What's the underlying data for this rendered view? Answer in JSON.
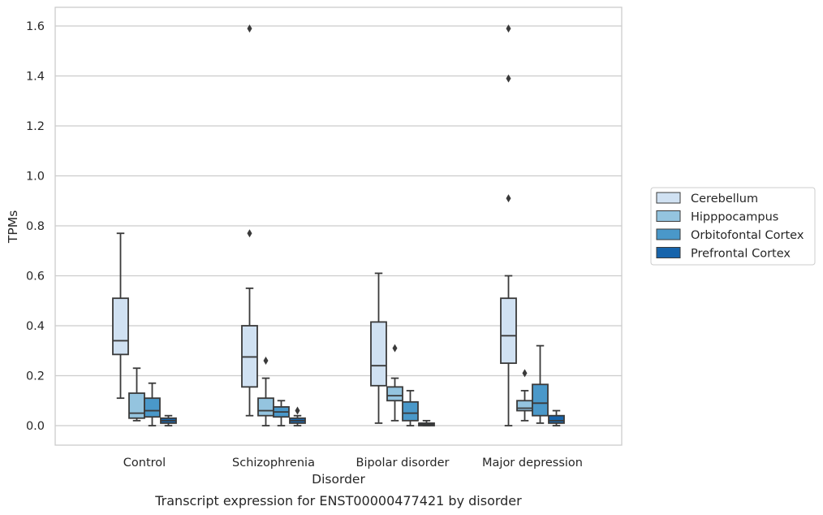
{
  "caption": "Transcript expression for ENST00000477421 by disorder",
  "chart_data": {
    "type": "box",
    "xlabel": "Disorder",
    "ylabel": "TPMs",
    "ylim": [
      -0.08,
      1.67
    ],
    "yticks": [
      0.0,
      0.2,
      0.4,
      0.6,
      0.8,
      1.0,
      1.2,
      1.4,
      1.6
    ],
    "ytick_labels": [
      "0.0",
      "0.2",
      "0.4",
      "0.6",
      "0.8",
      "1.0",
      "1.2",
      "1.4",
      "1.6"
    ],
    "grid": "horizontal",
    "legend_position": "center-right",
    "categories": [
      "Control",
      "Schizophrenia",
      "Bipolar disorder",
      "Major depression"
    ],
    "series": [
      {
        "name": "Cerebellum",
        "color": "#d0e1f2",
        "boxes": [
          {
            "whislo": 0.11,
            "q1": 0.285,
            "med": 0.34,
            "q3": 0.51,
            "whishi": 0.77,
            "fliers": []
          },
          {
            "whislo": 0.04,
            "q1": 0.155,
            "med": 0.275,
            "q3": 0.4,
            "whishi": 0.55,
            "fliers": [
              0.77,
              1.59
            ]
          },
          {
            "whislo": 0.01,
            "q1": 0.16,
            "med": 0.24,
            "q3": 0.415,
            "whishi": 0.61,
            "fliers": []
          },
          {
            "whislo": 0.0,
            "q1": 0.25,
            "med": 0.36,
            "q3": 0.51,
            "whishi": 0.6,
            "fliers": [
              0.91,
              1.39,
              1.59
            ]
          }
        ]
      },
      {
        "name": "Hipppocampus",
        "color": "#94c4df",
        "boxes": [
          {
            "whislo": 0.02,
            "q1": 0.03,
            "med": 0.05,
            "q3": 0.13,
            "whishi": 0.23,
            "fliers": []
          },
          {
            "whislo": 0.0,
            "q1": 0.04,
            "med": 0.06,
            "q3": 0.11,
            "whishi": 0.19,
            "fliers": [
              0.26
            ]
          },
          {
            "whislo": 0.02,
            "q1": 0.1,
            "med": 0.12,
            "q3": 0.155,
            "whishi": 0.19,
            "fliers": [
              0.31
            ]
          },
          {
            "whislo": 0.02,
            "q1": 0.06,
            "med": 0.07,
            "q3": 0.1,
            "whishi": 0.14,
            "fliers": [
              0.21
            ]
          }
        ]
      },
      {
        "name": "Orbitofontal Cortex",
        "color": "#4a98c9",
        "boxes": [
          {
            "whislo": 0.0,
            "q1": 0.035,
            "med": 0.06,
            "q3": 0.11,
            "whishi": 0.17,
            "fliers": []
          },
          {
            "whislo": 0.0,
            "q1": 0.035,
            "med": 0.055,
            "q3": 0.075,
            "whishi": 0.1,
            "fliers": []
          },
          {
            "whislo": 0.0,
            "q1": 0.02,
            "med": 0.05,
            "q3": 0.095,
            "whishi": 0.14,
            "fliers": []
          },
          {
            "whislo": 0.01,
            "q1": 0.04,
            "med": 0.09,
            "q3": 0.165,
            "whishi": 0.32,
            "fliers": []
          }
        ]
      },
      {
        "name": "Prefrontal Cortex",
        "color": "#1764ab",
        "boxes": [
          {
            "whislo": 0.0,
            "q1": 0.01,
            "med": 0.02,
            "q3": 0.03,
            "whishi": 0.04,
            "fliers": []
          },
          {
            "whislo": 0.0,
            "q1": 0.01,
            "med": 0.02,
            "q3": 0.03,
            "whishi": 0.04,
            "fliers": [
              0.06
            ]
          },
          {
            "whislo": 0.0,
            "q1": 0.0,
            "med": 0.005,
            "q3": 0.01,
            "whishi": 0.02,
            "fliers": []
          },
          {
            "whislo": 0.0,
            "q1": 0.01,
            "med": 0.02,
            "q3": 0.04,
            "whishi": 0.06,
            "fliers": []
          }
        ]
      }
    ]
  }
}
